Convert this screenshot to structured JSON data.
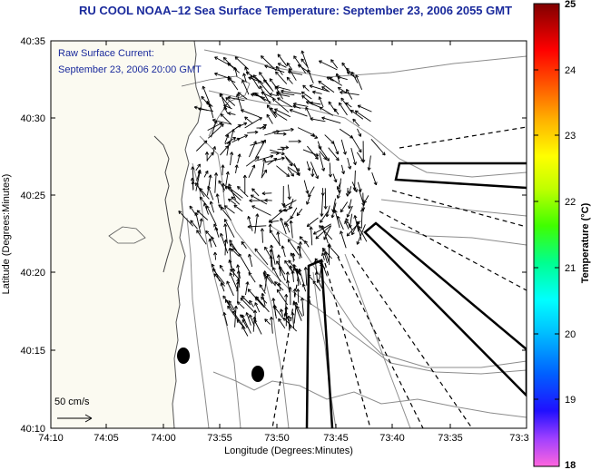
{
  "title": "RU COOL  NOAA–12  Sea Surface Temperature:  September 23, 2006 2055 GMT",
  "inset": {
    "line1": "Raw Surface Current:",
    "line2": "September 23, 2006 20:00 GMT"
  },
  "scale_label": "50 cm/s",
  "axes": {
    "xlabel": "Longitude (Degrees:Minutes)",
    "ylabel": "Latitude (Degrees:Minutes)",
    "xticks": [
      "74:10",
      "74:05",
      "74:00",
      "73:55",
      "73:50",
      "73:45",
      "73:40",
      "73:35",
      "73:3"
    ],
    "yticks": [
      "40:35",
      "40:30",
      "40:25",
      "40:20",
      "40:15",
      "40:10"
    ]
  },
  "colorbar": {
    "label": "Temperature (°C)",
    "ticks": [
      "25",
      "24",
      "23",
      "22",
      "21",
      "20",
      "19",
      "18"
    ],
    "colors": [
      "#ff66cc",
      "#8000ff",
      "#0000ff",
      "#00aaff",
      "#00ffff",
      "#00ff80",
      "#80ff00",
      "#ffff00",
      "#ffa000",
      "#ff3000",
      "#ff0000",
      "#8b0000"
    ]
  },
  "colors": {
    "title": "#1a2a9c",
    "land": "#fbfaf1",
    "ocean": "#ffffff",
    "contour": "#8c8c8c"
  }
}
